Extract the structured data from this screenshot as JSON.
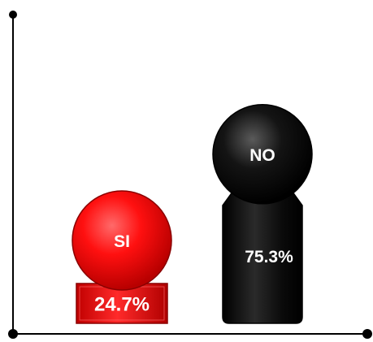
{
  "chart_data": {
    "type": "bar",
    "categories": [
      "SI",
      "NO"
    ],
    "values": [
      24.7,
      75.3
    ],
    "value_labels": [
      "24.7%",
      "75.3%"
    ],
    "ylim": [
      0,
      100
    ],
    "colors": [
      "#ff0000",
      "#000000"
    ],
    "title": "",
    "xlabel": "",
    "ylabel": "",
    "grid": false,
    "legend": "none"
  }
}
